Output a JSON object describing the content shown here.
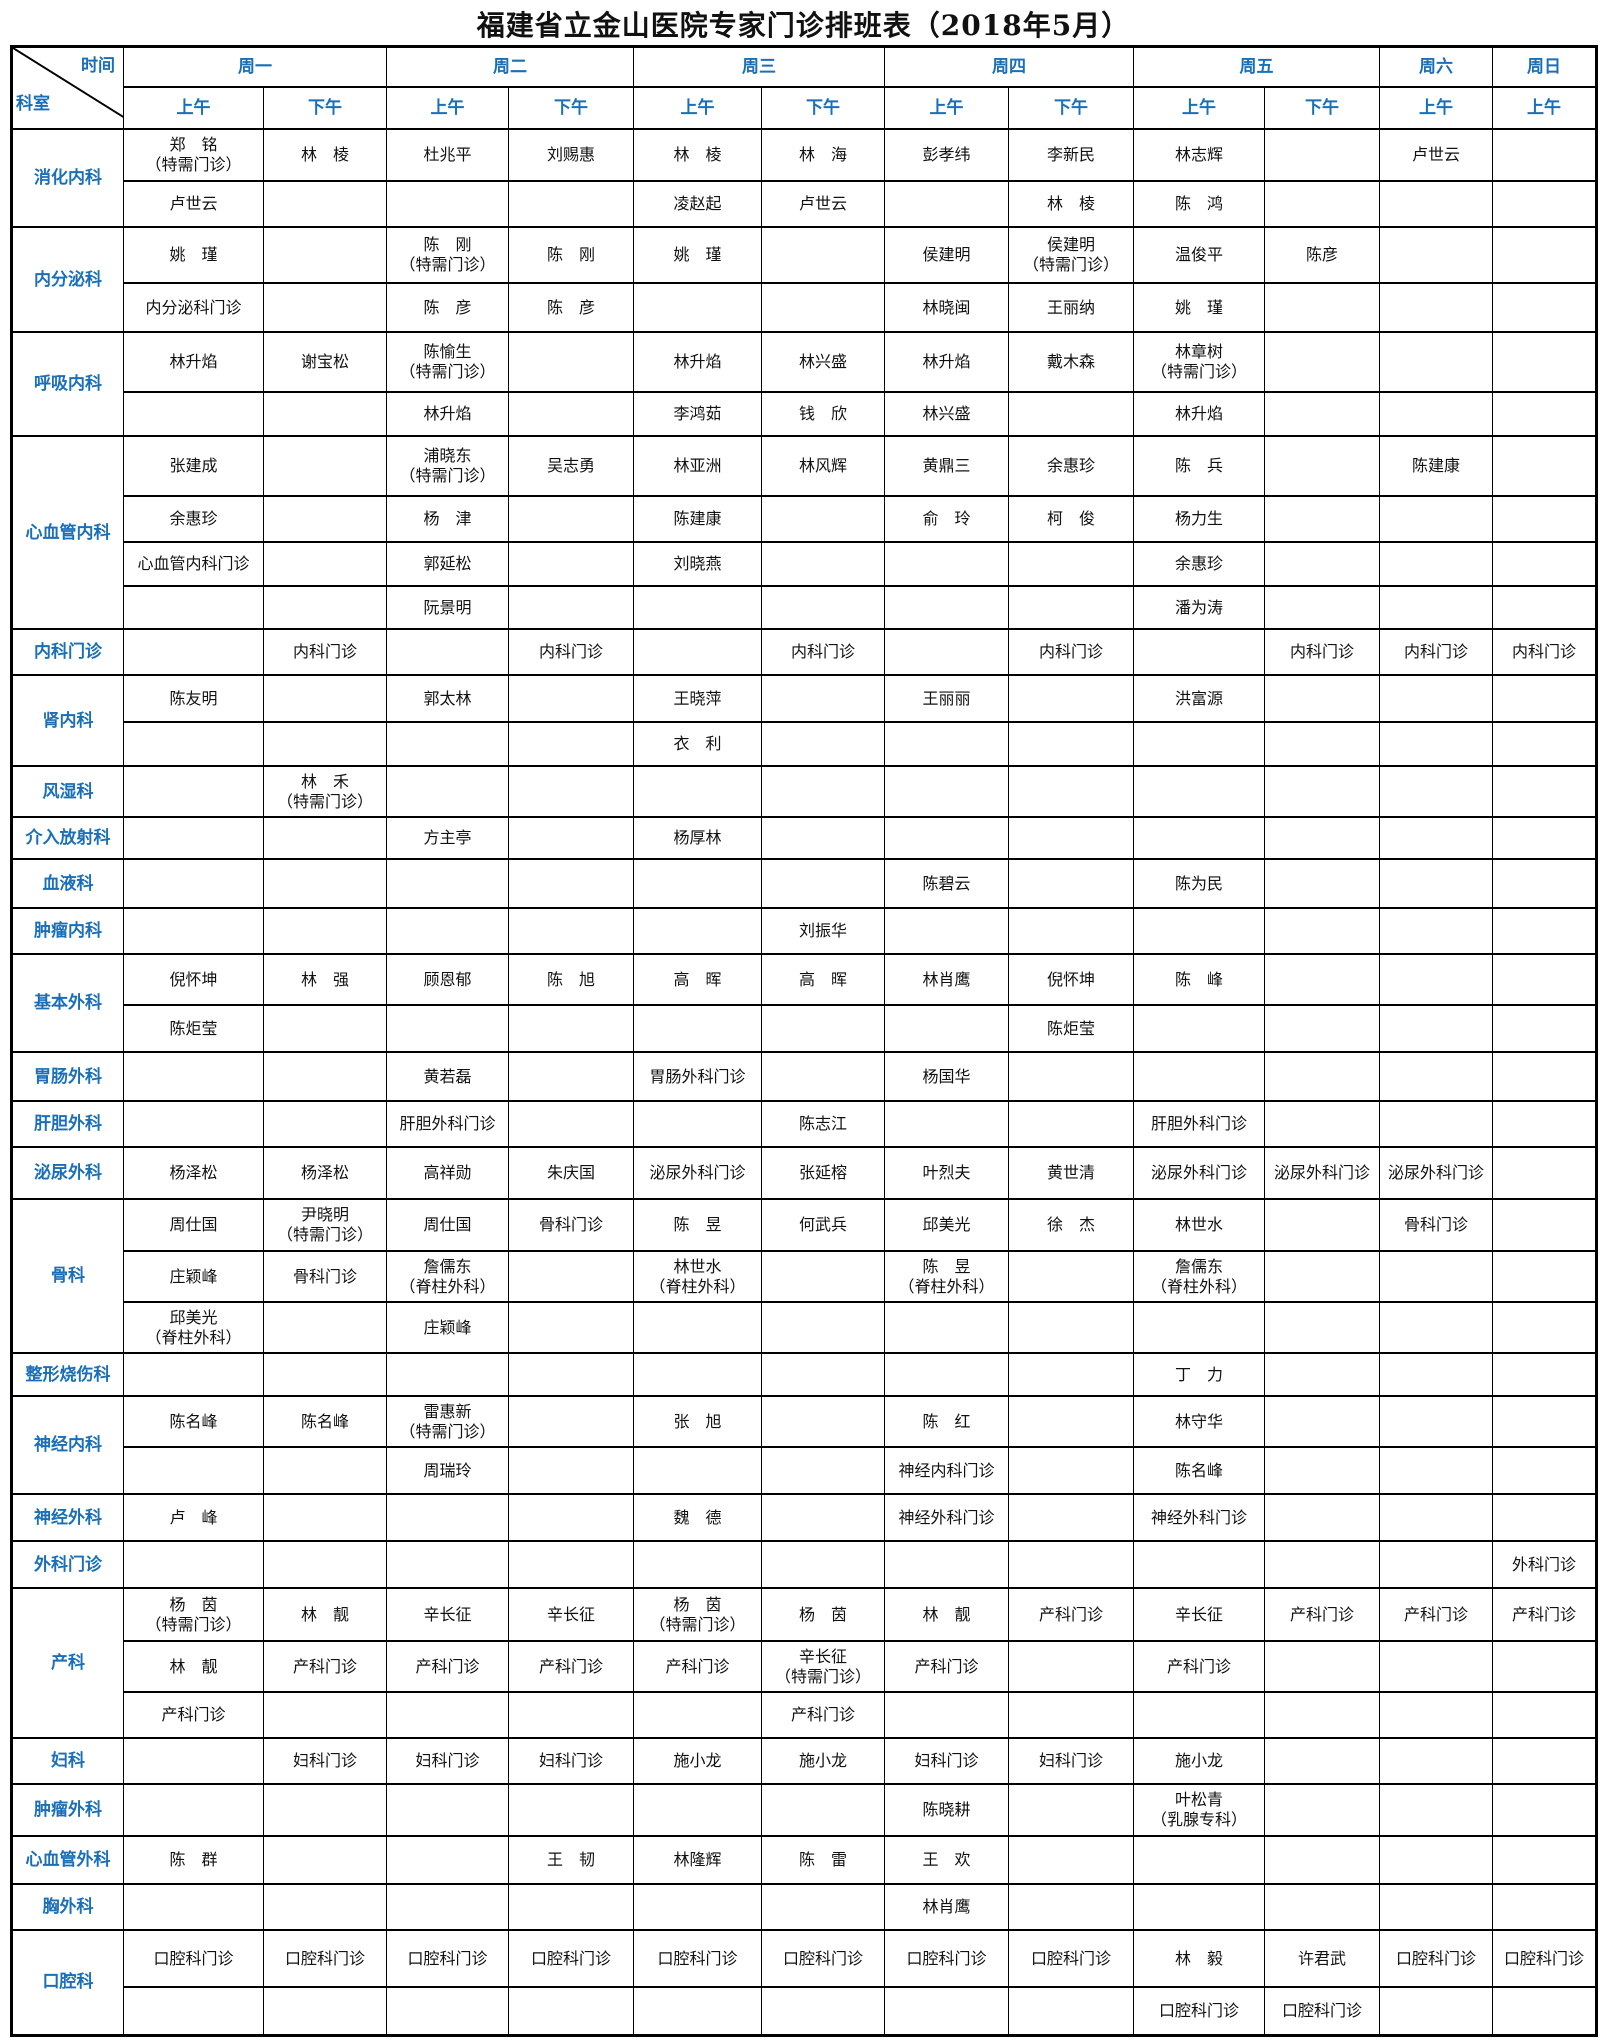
{
  "title": "福建省立金山医院专家门诊排班表（2018年5月）",
  "corner": {
    "time_label": "时间",
    "dept_label": "科室"
  },
  "days": [
    {
      "label": "周一",
      "slots": [
        "上午",
        "下午"
      ]
    },
    {
      "label": "周二",
      "slots": [
        "上午",
        "下午"
      ]
    },
    {
      "label": "周三",
      "slots": [
        "上午",
        "下午"
      ]
    },
    {
      "label": "周四",
      "slots": [
        "上午",
        "下午"
      ]
    },
    {
      "label": "周五",
      "slots": [
        "上午",
        "下午"
      ]
    },
    {
      "label": "周六",
      "slots": [
        "上午"
      ]
    },
    {
      "label": "周日",
      "slots": [
        "上午"
      ]
    }
  ],
  "colors": {
    "header_text": "#1a6fb8",
    "border": "#000000"
  },
  "departments": [
    {
      "name": "消化内科",
      "rows": [
        [
          "郑　铭\n（特需门诊）",
          "林　棱",
          "杜兆平",
          "刘赐惠",
          "林　棱",
          "林　海",
          "彭孝纬",
          "李新民",
          "林志辉",
          "",
          "卢世云",
          ""
        ],
        [
          "卢世云",
          "",
          "",
          "",
          "凌赵起",
          "卢世云",
          "",
          "林　棱",
          "陈　鸿",
          "",
          "",
          ""
        ]
      ]
    },
    {
      "name": "内分泌科",
      "rows": [
        [
          "姚　瑾",
          "",
          "陈　刚\n（特需门诊）",
          "陈　刚",
          "姚　瑾",
          "",
          "侯建明",
          "侯建明\n（特需门诊）",
          "温俊平",
          "陈彦",
          "",
          ""
        ],
        [
          "内分泌科门诊",
          "",
          "陈　彦",
          "陈　彦",
          "",
          "",
          "林晓闽",
          "王丽纳",
          "姚　瑾",
          "",
          "",
          ""
        ]
      ]
    },
    {
      "name": "呼吸内科",
      "rows": [
        [
          "林升焰",
          "谢宝松",
          "陈愉生\n（特需门诊）",
          "",
          "林升焰",
          "林兴盛",
          "林升焰",
          "戴木森",
          "林章树\n（特需门诊）",
          "",
          "",
          ""
        ],
        [
          "",
          "",
          "林升焰",
          "",
          "李鸿茹",
          "钱　欣",
          "林兴盛",
          "",
          "林升焰",
          "",
          "",
          ""
        ]
      ]
    },
    {
      "name": "心血管内科",
      "rows": [
        [
          "张建成",
          "",
          "浦晓东\n（特需门诊）",
          "吴志勇",
          "林亚洲",
          "林风辉",
          "黄鼎三",
          "余惠珍",
          "陈　兵",
          "",
          "陈建康",
          ""
        ],
        [
          "余惠珍",
          "",
          "杨　津",
          "",
          "陈建康",
          "",
          "俞　玲",
          "柯　俊",
          "杨力生",
          "",
          "",
          ""
        ],
        [
          "心血管内科门诊",
          "",
          "郭延松",
          "",
          "刘晓燕",
          "",
          "",
          "",
          "余惠珍",
          "",
          "",
          ""
        ],
        [
          "",
          "",
          "阮景明",
          "",
          "",
          "",
          "",
          "",
          "潘为涛",
          "",
          "",
          ""
        ]
      ]
    },
    {
      "name": "内科门诊",
      "rows": [
        [
          "",
          "内科门诊",
          "",
          "内科门诊",
          "",
          "内科门诊",
          "",
          "内科门诊",
          "",
          "内科门诊",
          "内科门诊",
          "内科门诊"
        ]
      ]
    },
    {
      "name": "肾内科",
      "rows": [
        [
          "陈友明",
          "",
          "郭太林",
          "",
          "王晓萍",
          "",
          "王丽丽",
          "",
          "洪富源",
          "",
          "",
          ""
        ],
        [
          "",
          "",
          "",
          "",
          "衣　利",
          "",
          "",
          "",
          "",
          "",
          "",
          ""
        ]
      ]
    },
    {
      "name": "风湿科",
      "rows": [
        [
          "",
          "林　禾\n（特需门诊）",
          "",
          "",
          "",
          "",
          "",
          "",
          "",
          "",
          "",
          ""
        ]
      ]
    },
    {
      "name": "介入放射科",
      "rows": [
        [
          "",
          "",
          "方主亭",
          "",
          "杨厚林",
          "",
          "",
          "",
          "",
          "",
          "",
          ""
        ]
      ]
    },
    {
      "name": "血液科",
      "rows": [
        [
          "",
          "",
          "",
          "",
          "",
          "",
          "陈碧云",
          "",
          "陈为民",
          "",
          "",
          ""
        ]
      ]
    },
    {
      "name": "肿瘤内科",
      "rows": [
        [
          "",
          "",
          "",
          "",
          "",
          "刘振华",
          "",
          "",
          "",
          "",
          "",
          ""
        ]
      ]
    },
    {
      "name": "基本外科",
      "rows": [
        [
          "倪怀坤",
          "林　强",
          "顾恩郁",
          "陈　旭",
          "高　晖",
          "高　晖",
          "林肖鹰",
          "倪怀坤",
          "陈　峰",
          "",
          "",
          ""
        ],
        [
          "陈炬莹",
          "",
          "",
          "",
          "",
          "",
          "",
          "陈炬莹",
          "",
          "",
          "",
          ""
        ]
      ]
    },
    {
      "name": "胃肠外科",
      "rows": [
        [
          "",
          "",
          "黄若磊",
          "",
          "胃肠外科门诊",
          "",
          "杨国华",
          "",
          "",
          "",
          "",
          ""
        ]
      ]
    },
    {
      "name": "肝胆外科",
      "rows": [
        [
          "",
          "",
          "肝胆外科门诊",
          "",
          "",
          "陈志江",
          "",
          "",
          "肝胆外科门诊",
          "",
          "",
          ""
        ]
      ]
    },
    {
      "name": "泌尿外科",
      "rows": [
        [
          "杨泽松",
          "杨泽松",
          "高祥勋",
          "朱庆国",
          "泌尿外科门诊",
          "张延榕",
          "叶烈夫",
          "黄世清",
          "泌尿外科门诊",
          "泌尿外科门诊",
          "泌尿外科门诊",
          ""
        ]
      ]
    },
    {
      "name": "骨科",
      "rows": [
        [
          "周仕国",
          "尹晓明\n（特需门诊）",
          "周仕国",
          "骨科门诊",
          "陈　昱",
          "何武兵",
          "邱美光",
          "徐　杰",
          "林世水",
          "",
          "骨科门诊",
          ""
        ],
        [
          "庄颖峰",
          "骨科门诊",
          "詹儒东\n（脊柱外科）",
          "",
          "林世水\n（脊柱外科）",
          "",
          "陈　昱\n（脊柱外科）",
          "",
          "詹儒东\n（脊柱外科）",
          "",
          "",
          ""
        ],
        [
          "邱美光\n（脊柱外科）",
          "",
          "庄颖峰",
          "",
          "",
          "",
          "",
          "",
          "",
          "",
          "",
          ""
        ]
      ]
    },
    {
      "name": "整形烧伤科",
      "rows": [
        [
          "",
          "",
          "",
          "",
          "",
          "",
          "",
          "",
          "丁　力",
          "",
          "",
          ""
        ]
      ]
    },
    {
      "name": "神经内科",
      "rows": [
        [
          "陈名峰",
          "陈名峰",
          "雷惠新\n（特需门诊）",
          "",
          "张　旭",
          "",
          "陈　红",
          "",
          "林守华",
          "",
          "",
          ""
        ],
        [
          "",
          "",
          "周瑞玲",
          "",
          "",
          "",
          "神经内科门诊",
          "",
          "陈名峰",
          "",
          "",
          ""
        ]
      ]
    },
    {
      "name": "神经外科",
      "rows": [
        [
          "卢　峰",
          "",
          "",
          "",
          "魏　德",
          "",
          "神经外科门诊",
          "",
          "神经外科门诊",
          "",
          "",
          ""
        ]
      ]
    },
    {
      "name": "外科门诊",
      "rows": [
        [
          "",
          "",
          "",
          "",
          "",
          "",
          "",
          "",
          "",
          "",
          "",
          "外科门诊"
        ]
      ]
    },
    {
      "name": "产科",
      "rows": [
        [
          "杨　茵\n（特需门诊）",
          "林　靓",
          "辛长征",
          "辛长征",
          "杨　茵\n（特需门诊）",
          "杨　茵",
          "林　靓",
          "产科门诊",
          "辛长征",
          "产科门诊",
          "产科门诊",
          "产科门诊"
        ],
        [
          "林　靓",
          "产科门诊",
          "产科门诊",
          "产科门诊",
          "产科门诊",
          "辛长征\n（特需门诊）",
          "产科门诊",
          "",
          "产科门诊",
          "",
          "",
          ""
        ],
        [
          "产科门诊",
          "",
          "",
          "",
          "",
          "产科门诊",
          "",
          "",
          "",
          "",
          "",
          ""
        ]
      ]
    },
    {
      "name": "妇科",
      "rows": [
        [
          "",
          "妇科门诊",
          "妇科门诊",
          "妇科门诊",
          "施小龙",
          "施小龙",
          "妇科门诊",
          "妇科门诊",
          "施小龙",
          "",
          "",
          ""
        ]
      ]
    },
    {
      "name": "肿瘤外科",
      "rows": [
        [
          "",
          "",
          "",
          "",
          "",
          "",
          "陈晓耕",
          "",
          "叶松青\n（乳腺专科）",
          "",
          "",
          ""
        ]
      ]
    },
    {
      "name": "心血管外科",
      "rows": [
        [
          "陈　群",
          "",
          "",
          "王　韧",
          "林隆辉",
          "陈　雷",
          "王　欢",
          "",
          "",
          "",
          "",
          ""
        ]
      ]
    },
    {
      "name": "胸外科",
      "rows": [
        [
          "",
          "",
          "",
          "",
          "",
          "",
          "林肖鹰",
          "",
          "",
          "",
          "",
          ""
        ]
      ]
    },
    {
      "name": "口腔科",
      "rows": [
        [
          "口腔科门诊",
          "口腔科门诊",
          "口腔科门诊",
          "口腔科门诊",
          "口腔科门诊",
          "口腔科门诊",
          "口腔科门诊",
          "口腔科门诊",
          "林　毅",
          "许君武",
          "口腔科门诊",
          "口腔科门诊"
        ],
        [
          "",
          "",
          "",
          "",
          "",
          "",
          "",
          "",
          "口腔科门诊",
          "口腔科门诊",
          "",
          ""
        ]
      ]
    }
  ]
}
